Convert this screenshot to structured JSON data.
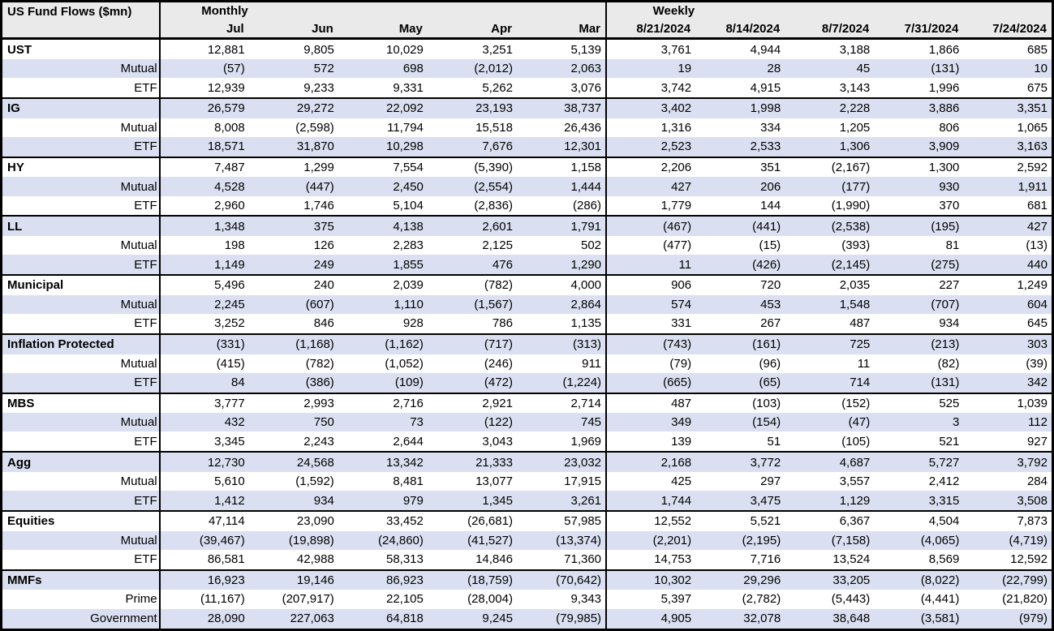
{
  "chart_data": {
    "type": "table",
    "title": "US Fund Flows ($mn)",
    "group_headers": {
      "monthly": "Monthly",
      "weekly": "Weekly"
    },
    "monthly_columns": [
      "Jul",
      "Jun",
      "May",
      "Apr",
      "Mar"
    ],
    "weekly_columns": [
      "8/21/2024",
      "8/14/2024",
      "8/7/2024",
      "7/31/2024",
      "7/24/2024"
    ],
    "negative_format": "parentheses",
    "layout_hints": {
      "banded_rows": true,
      "first_data_row_band": "white"
    },
    "colors": {
      "band_row": "#dae0f1",
      "header_bg": "#eaeaea",
      "border": "#000000",
      "text": "#000000"
    },
    "sections": [
      {
        "name": "UST",
        "rows": [
          {
            "label": "UST",
            "style": "section",
            "monthly": [
              "12,881",
              "9,805",
              "10,029",
              "3,251",
              "5,139"
            ],
            "weekly": [
              "3,761",
              "4,944",
              "3,188",
              "1,866",
              "685"
            ]
          },
          {
            "label": "Mutual",
            "style": "sub",
            "monthly": [
              "(57)",
              "572",
              "698",
              "(2,012)",
              "2,063"
            ],
            "weekly": [
              "19",
              "28",
              "45",
              "(131)",
              "10"
            ]
          },
          {
            "label": "ETF",
            "style": "sub",
            "monthly": [
              "12,939",
              "9,233",
              "9,331",
              "5,262",
              "3,076"
            ],
            "weekly": [
              "3,742",
              "4,915",
              "3,143",
              "1,996",
              "675"
            ]
          }
        ]
      },
      {
        "name": "IG",
        "rows": [
          {
            "label": "IG",
            "style": "section",
            "monthly": [
              "26,579",
              "29,272",
              "22,092",
              "23,193",
              "38,737"
            ],
            "weekly": [
              "3,402",
              "1,998",
              "2,228",
              "3,886",
              "3,351"
            ]
          },
          {
            "label": "Mutual",
            "style": "sub",
            "monthly": [
              "8,008",
              "(2,598)",
              "11,794",
              "15,518",
              "26,436"
            ],
            "weekly": [
              "1,316",
              "334",
              "1,205",
              "806",
              "1,065"
            ]
          },
          {
            "label": "ETF",
            "style": "sub",
            "monthly": [
              "18,571",
              "31,870",
              "10,298",
              "7,676",
              "12,301"
            ],
            "weekly": [
              "2,523",
              "2,533",
              "1,306",
              "3,909",
              "3,163"
            ]
          }
        ]
      },
      {
        "name": "HY",
        "rows": [
          {
            "label": "HY",
            "style": "section",
            "monthly": [
              "7,487",
              "1,299",
              "7,554",
              "(5,390)",
              "1,158"
            ],
            "weekly": [
              "2,206",
              "351",
              "(2,167)",
              "1,300",
              "2,592"
            ]
          },
          {
            "label": "Mutual",
            "style": "sub",
            "monthly": [
              "4,528",
              "(447)",
              "2,450",
              "(2,554)",
              "1,444"
            ],
            "weekly": [
              "427",
              "206",
              "(177)",
              "930",
              "1,911"
            ]
          },
          {
            "label": "ETF",
            "style": "sub",
            "monthly": [
              "2,960",
              "1,746",
              "5,104",
              "(2,836)",
              "(286)"
            ],
            "weekly": [
              "1,779",
              "144",
              "(1,990)",
              "370",
              "681"
            ]
          }
        ]
      },
      {
        "name": "LL",
        "rows": [
          {
            "label": "LL",
            "style": "section",
            "monthly": [
              "1,348",
              "375",
              "4,138",
              "2,601",
              "1,791"
            ],
            "weekly": [
              "(467)",
              "(441)",
              "(2,538)",
              "(195)",
              "427"
            ]
          },
          {
            "label": "Mutual",
            "style": "sub",
            "monthly": [
              "198",
              "126",
              "2,283",
              "2,125",
              "502"
            ],
            "weekly": [
              "(477)",
              "(15)",
              "(393)",
              "81",
              "(13)"
            ]
          },
          {
            "label": "ETF",
            "style": "sub",
            "monthly": [
              "1,149",
              "249",
              "1,855",
              "476",
              "1,290"
            ],
            "weekly": [
              "11",
              "(426)",
              "(2,145)",
              "(275)",
              "440"
            ]
          }
        ]
      },
      {
        "name": "Municipal",
        "rows": [
          {
            "label": "Municipal",
            "style": "section",
            "monthly": [
              "5,496",
              "240",
              "2,039",
              "(782)",
              "4,000"
            ],
            "weekly": [
              "906",
              "720",
              "2,035",
              "227",
              "1,249"
            ]
          },
          {
            "label": "Mutual",
            "style": "sub",
            "monthly": [
              "2,245",
              "(607)",
              "1,110",
              "(1,567)",
              "2,864"
            ],
            "weekly": [
              "574",
              "453",
              "1,548",
              "(707)",
              "604"
            ]
          },
          {
            "label": "ETF",
            "style": "sub",
            "monthly": [
              "3,252",
              "846",
              "928",
              "786",
              "1,135"
            ],
            "weekly": [
              "331",
              "267",
              "487",
              "934",
              "645"
            ]
          }
        ]
      },
      {
        "name": "Inflation Protected",
        "rows": [
          {
            "label": "Inflation Protected",
            "style": "section",
            "monthly": [
              "(331)",
              "(1,168)",
              "(1,162)",
              "(717)",
              "(313)"
            ],
            "weekly": [
              "(743)",
              "(161)",
              "725",
              "(213)",
              "303"
            ]
          },
          {
            "label": "Mutual",
            "style": "sub",
            "monthly": [
              "(415)",
              "(782)",
              "(1,052)",
              "(246)",
              "911"
            ],
            "weekly": [
              "(79)",
              "(96)",
              "11",
              "(82)",
              "(39)"
            ]
          },
          {
            "label": "ETF",
            "style": "sub",
            "monthly": [
              "84",
              "(386)",
              "(109)",
              "(472)",
              "(1,224)"
            ],
            "weekly": [
              "(665)",
              "(65)",
              "714",
              "(131)",
              "342"
            ]
          }
        ]
      },
      {
        "name": "MBS",
        "rows": [
          {
            "label": "MBS",
            "style": "section",
            "monthly": [
              "3,777",
              "2,993",
              "2,716",
              "2,921",
              "2,714"
            ],
            "weekly": [
              "487",
              "(103)",
              "(152)",
              "525",
              "1,039"
            ]
          },
          {
            "label": "Mutual",
            "style": "sub",
            "monthly": [
              "432",
              "750",
              "73",
              "(122)",
              "745"
            ],
            "weekly": [
              "349",
              "(154)",
              "(47)",
              "3",
              "112"
            ]
          },
          {
            "label": "ETF",
            "style": "sub",
            "monthly": [
              "3,345",
              "2,243",
              "2,644",
              "3,043",
              "1,969"
            ],
            "weekly": [
              "139",
              "51",
              "(105)",
              "521",
              "927"
            ]
          }
        ]
      },
      {
        "name": "Agg",
        "rows": [
          {
            "label": "Agg",
            "style": "section",
            "monthly": [
              "12,730",
              "24,568",
              "13,342",
              "21,333",
              "23,032"
            ],
            "weekly": [
              "2,168",
              "3,772",
              "4,687",
              "5,727",
              "3,792"
            ]
          },
          {
            "label": "Mutual",
            "style": "sub",
            "monthly": [
              "5,610",
              "(1,592)",
              "8,481",
              "13,077",
              "17,915"
            ],
            "weekly": [
              "425",
              "297",
              "3,557",
              "2,412",
              "284"
            ]
          },
          {
            "label": "ETF",
            "style": "sub",
            "monthly": [
              "1,412",
              "934",
              "979",
              "1,345",
              "3,261"
            ],
            "weekly": [
              "1,744",
              "3,475",
              "1,129",
              "3,315",
              "3,508"
            ]
          }
        ]
      },
      {
        "name": "Equities",
        "rows": [
          {
            "label": "Equities",
            "style": "section",
            "monthly": [
              "47,114",
              "23,090",
              "33,452",
              "(26,681)",
              "57,985"
            ],
            "weekly": [
              "12,552",
              "5,521",
              "6,367",
              "4,504",
              "7,873"
            ]
          },
          {
            "label": "Mutual",
            "style": "sub",
            "monthly": [
              "(39,467)",
              "(19,898)",
              "(24,860)",
              "(41,527)",
              "(13,374)"
            ],
            "weekly": [
              "(2,201)",
              "(2,195)",
              "(7,158)",
              "(4,065)",
              "(4,719)"
            ]
          },
          {
            "label": "ETF",
            "style": "sub",
            "monthly": [
              "86,581",
              "42,988",
              "58,313",
              "14,846",
              "71,360"
            ],
            "weekly": [
              "14,753",
              "7,716",
              "13,524",
              "8,569",
              "12,592"
            ]
          }
        ]
      },
      {
        "name": "MMFs",
        "rows": [
          {
            "label": "MMFs",
            "style": "section",
            "monthly": [
              "16,923",
              "19,146",
              "86,923",
              "(18,759)",
              "(70,642)"
            ],
            "weekly": [
              "10,302",
              "29,296",
              "33,205",
              "(8,022)",
              "(22,799)"
            ]
          },
          {
            "label": "Prime",
            "style": "sub",
            "monthly": [
              "(11,167)",
              "(207,917)",
              "22,105",
              "(28,004)",
              "9,343"
            ],
            "weekly": [
              "5,397",
              "(2,782)",
              "(5,443)",
              "(4,441)",
              "(21,820)"
            ]
          },
          {
            "label": "Government",
            "style": "sub",
            "monthly": [
              "28,090",
              "227,063",
              "64,818",
              "9,245",
              "(79,985)"
            ],
            "weekly": [
              "4,905",
              "32,078",
              "38,648",
              "(3,581)",
              "(979)"
            ]
          }
        ]
      }
    ]
  }
}
